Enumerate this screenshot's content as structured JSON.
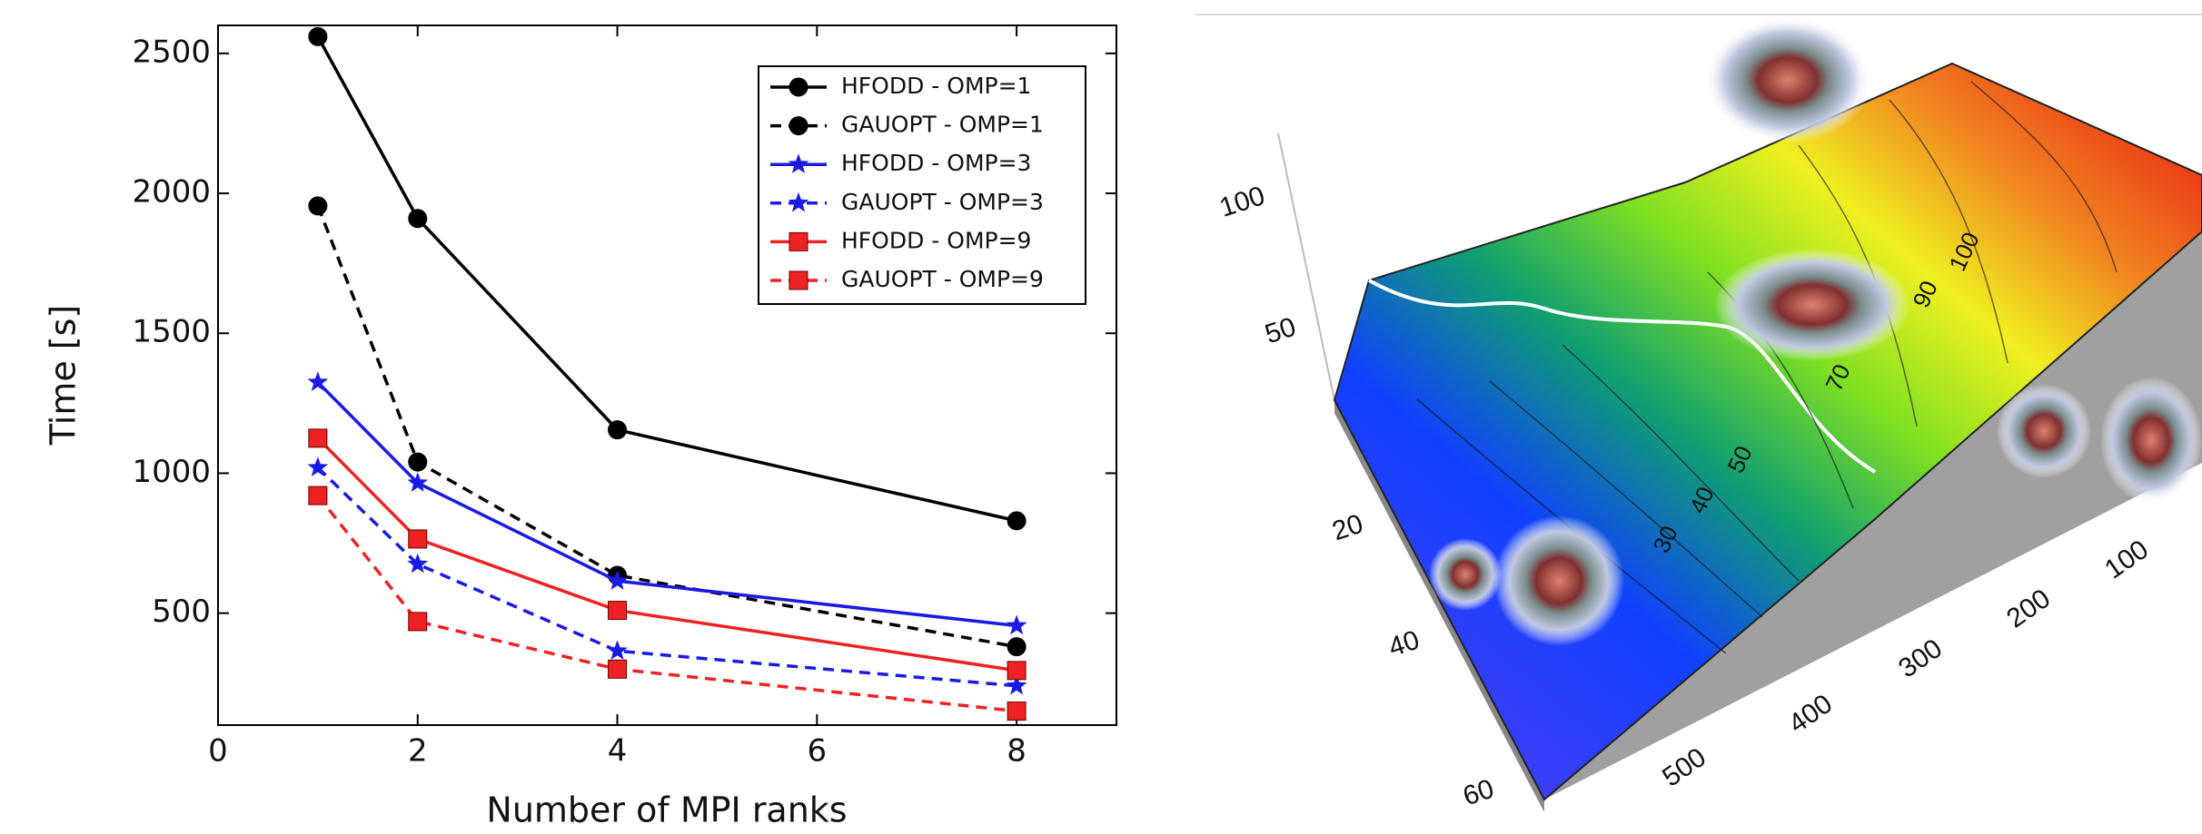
{
  "chart_data": {
    "type": "line",
    "xlabel": "Number of MPI ranks",
    "ylabel": "Time [s]",
    "x": [
      1,
      2,
      4,
      8
    ],
    "xlim": [
      0,
      9
    ],
    "ylim": [
      100,
      2600
    ],
    "xticks": [
      0,
      2,
      4,
      6,
      8
    ],
    "yticks": [
      500,
      1000,
      1500,
      2000,
      2500
    ],
    "legend": "upper right",
    "series": [
      {
        "name": "HFODD   - OMP=1",
        "color": "#000000",
        "dash": false,
        "marker": "circle",
        "values": [
          2560,
          1910,
          1155,
          830
        ]
      },
      {
        "name": "GAUOPT - OMP=1",
        "color": "#000000",
        "dash": true,
        "marker": "circle",
        "values": [
          1955,
          1040,
          635,
          380
        ]
      },
      {
        "name": "HFODD   - OMP=3",
        "color": "#1a1ae6",
        "dash": false,
        "marker": "star",
        "values": [
          1325,
          965,
          615,
          455
        ]
      },
      {
        "name": "GAUOPT - OMP=3",
        "color": "#1a1ae6",
        "dash": true,
        "marker": "star",
        "values": [
          1020,
          675,
          365,
          240
        ]
      },
      {
        "name": "HFODD   - OMP=9",
        "color": "#ee2222",
        "dash": false,
        "marker": "square",
        "values": [
          1125,
          765,
          510,
          295
        ]
      },
      {
        "name": "GAUOPT - OMP=9",
        "color": "#ee2222",
        "dash": true,
        "marker": "square",
        "values": [
          920,
          470,
          300,
          150
        ]
      }
    ]
  },
  "surface_figure": {
    "depth_labels": [
      "100",
      "50",
      "20",
      "40",
      "60"
    ],
    "width_labels": [
      "500",
      "400",
      "300",
      "200",
      "100"
    ],
    "contour_labels": [
      "30",
      "40",
      "50",
      "70",
      "90",
      "100"
    ]
  }
}
